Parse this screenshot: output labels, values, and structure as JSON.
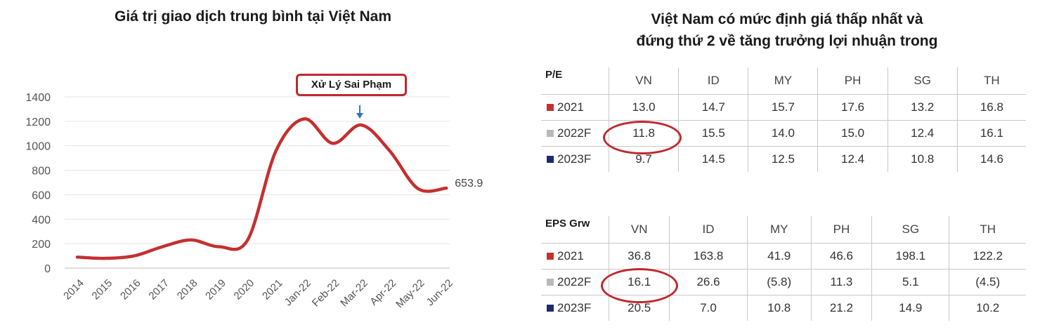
{
  "left_title": "Giá trị giao dịch trung bình tại Việt Nam",
  "right_title": {
    "line1": "Việt Nam có mức định giá thấp nhất và",
    "line2": "đứng thứ 2 về tăng trưởng lợi nhuận trong"
  },
  "annotation": {
    "label": "Xử Lý Sai Phạm",
    "target": "Mar-22"
  },
  "colors": {
    "line": "#c62f2f",
    "highlight": "#c0282d",
    "s2021": "#c62f2f",
    "s2022F": "#b9b9b9",
    "s2023F": "#1f2a6b"
  },
  "chart_data": {
    "type": "line",
    "title": "Giá trị giao dịch trung bình tại Việt Nam",
    "categories": [
      "2014",
      "2015",
      "2016",
      "2017",
      "2018",
      "2019",
      "2020",
      "2021",
      "Jan-22",
      "Feb-22",
      "Mar-22",
      "Apr-22",
      "May-22",
      "Jun-22"
    ],
    "values": [
      90,
      80,
      100,
      175,
      230,
      175,
      230,
      960,
      1220,
      1020,
      1170,
      960,
      650,
      653.9
    ],
    "last_value_label": "653.9",
    "ylim": [
      0,
      1400
    ],
    "yticks": [
      0,
      200,
      400,
      600,
      800,
      1000,
      1200,
      1400
    ],
    "grid": "horizontal",
    "xlabel": "",
    "ylabel": ""
  },
  "pe_table": {
    "corner": "P/E",
    "columns": [
      "VN",
      "ID",
      "MY",
      "PH",
      "SG",
      "TH"
    ],
    "rows": [
      {
        "label": "2021",
        "color": "#c62f2f",
        "values": [
          "13.0",
          "14.7",
          "15.7",
          "17.6",
          "13.2",
          "16.8"
        ]
      },
      {
        "label": "2022F",
        "color": "#b9b9b9",
        "values": [
          "11.8",
          "15.5",
          "14.0",
          "15.0",
          "12.4",
          "16.1"
        ]
      },
      {
        "label": "2023F",
        "color": "#1f2a6b",
        "values": [
          "9.7",
          "14.5",
          "12.5",
          "12.4",
          "10.8",
          "14.6"
        ]
      }
    ]
  },
  "eps_table": {
    "corner": "EPS Grw",
    "columns": [
      "VN",
      "ID",
      "MY",
      "PH",
      "SG",
      "TH"
    ],
    "rows": [
      {
        "label": "2021",
        "color": "#c62f2f",
        "values": [
          "36.8",
          "163.8",
          "41.9",
          "46.6",
          "198.1",
          "122.2"
        ]
      },
      {
        "label": "2022F",
        "color": "#b9b9b9",
        "values": [
          "16.1",
          "26.6",
          "(5.8)",
          "11.3",
          "5.1",
          "(4.5)"
        ]
      },
      {
        "label": "2023F",
        "color": "#1f2a6b",
        "values": [
          "20.5",
          "7.0",
          "10.8",
          "21.2",
          "14.9",
          "10.2"
        ]
      }
    ]
  }
}
